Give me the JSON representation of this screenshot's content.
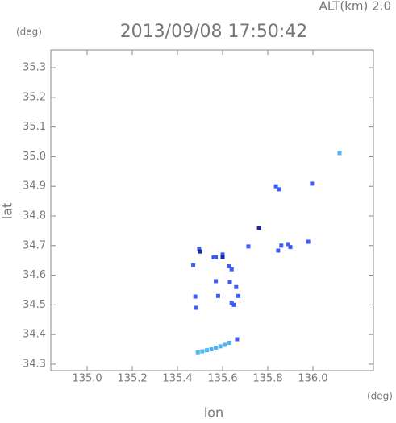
{
  "chart_data": {
    "type": "scatter",
    "title": "2013/09/08 17:50:42",
    "subtitle": "ALT(km) 2.0",
    "y_unit": "(deg)",
    "x_unit": "(deg)",
    "xlabel": "lon",
    "ylabel": "lat",
    "xlim": [
      134.839,
      136.268
    ],
    "ylim": [
      34.278,
      35.36
    ],
    "xticks": [
      {
        "value": 135,
        "label": "135.0"
      },
      135.2,
      135.4,
      135.6,
      135.8,
      {
        "value": 136,
        "label": "136.0"
      }
    ],
    "yticks": [
      34.3,
      34.4,
      34.5,
      34.6,
      34.7,
      34.8,
      34.9,
      {
        "value": 35,
        "label": "35.0"
      },
      35.1,
      35.2,
      35.3
    ],
    "series": [
      {
        "color": "#3d5cf5",
        "x": [
          135.836,
          135.85,
          135.996,
          135.714,
          135.496,
          135.57,
          135.89,
          135.9,
          135.86,
          135.846,
          135.979,
          135.47,
          135.6,
          135.63,
          135.64,
          135.632,
          135.66,
          135.67,
          135.64,
          135.65,
          135.479,
          135.482,
          135.664,
          135.57,
          135.58,
          135.56
        ],
        "values": [
          34.9,
          34.89,
          34.909,
          34.697,
          34.689,
          34.66,
          34.705,
          34.695,
          34.7,
          34.683,
          34.713,
          34.634,
          34.67,
          34.63,
          34.62,
          34.577,
          34.56,
          34.53,
          34.507,
          34.5,
          34.528,
          34.49,
          34.384,
          34.58,
          34.53,
          34.66
        ]
      },
      {
        "color": "#4fb4f0",
        "x": [
          135.49,
          135.51,
          135.53,
          135.55,
          135.57,
          135.59,
          135.61,
          135.63,
          136.118
        ],
        "values": [
          34.34,
          34.343,
          34.347,
          34.35,
          34.355,
          34.36,
          34.365,
          34.372,
          35.012
        ]
      },
      {
        "color": "#1a2a9a",
        "x": [
          135.761,
          135.6,
          135.5
        ],
        "values": [
          34.76,
          34.66,
          34.68
        ]
      }
    ]
  }
}
